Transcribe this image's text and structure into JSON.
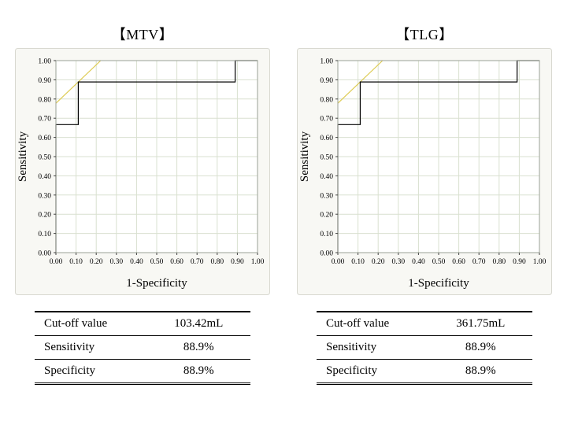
{
  "figures": [
    {
      "title": "【MTV】",
      "table": {
        "rows": [
          {
            "label": "Cut-off value",
            "value": "103.42mL"
          },
          {
            "label": "Sensitivity",
            "value": "88.9%"
          },
          {
            "label": "Specificity",
            "value": "88.9%"
          }
        ]
      }
    },
    {
      "title": "【TLG】",
      "table": {
        "rows": [
          {
            "label": "Cut-off value",
            "value": "361.75mL"
          },
          {
            "label": "Sensitivity",
            "value": "88.9%"
          },
          {
            "label": "Specificity",
            "value": "88.9%"
          }
        ]
      }
    }
  ],
  "chart_data": [
    {
      "type": "line",
      "title": "【MTV】",
      "xlabel": "1-Specificity",
      "ylabel": "Sensitivity",
      "xlim": [
        0,
        1
      ],
      "ylim": [
        0,
        1
      ],
      "grid": true,
      "legend": "none",
      "tick_labels": [
        "0.00",
        "0.10",
        "0.20",
        "0.30",
        "0.40",
        "0.50",
        "0.60",
        "0.70",
        "0.80",
        "0.90",
        "1.00"
      ],
      "colors": {
        "panel": "#f8f8f4",
        "panel_border": "#d8d8d0",
        "grid": "#d9e0d0",
        "plot_border": "#9aa096",
        "tick": "#444444"
      },
      "series": [
        {
          "name": "youden-reference-line",
          "color": "#ddcb52",
          "points": [
            [
              0,
              0.778
            ],
            [
              0.222,
              1.0
            ]
          ]
        },
        {
          "name": "ROC curve",
          "color": "#000000",
          "points": [
            [
              0,
              0
            ],
            [
              0,
              0.667
            ],
            [
              0.111,
              0.667
            ],
            [
              0.111,
              0.889
            ],
            [
              0.889,
              0.889
            ],
            [
              0.889,
              1.0
            ],
            [
              1,
              1
            ]
          ]
        }
      ]
    },
    {
      "type": "line",
      "title": "【TLG】",
      "xlabel": "1-Specificity",
      "ylabel": "Sensitivity",
      "xlim": [
        0,
        1
      ],
      "ylim": [
        0,
        1
      ],
      "grid": true,
      "legend": "none",
      "tick_labels": [
        "0.00",
        "0.10",
        "0.20",
        "0.30",
        "0.40",
        "0.50",
        "0.60",
        "0.70",
        "0.80",
        "0.90",
        "1.00"
      ],
      "colors": {
        "panel": "#f8f8f4",
        "panel_border": "#d8d8d0",
        "grid": "#d9e0d0",
        "plot_border": "#9aa096",
        "tick": "#444444"
      },
      "series": [
        {
          "name": "youden-reference-line",
          "color": "#ddcb52",
          "points": [
            [
              0,
              0.778
            ],
            [
              0.222,
              1.0
            ]
          ]
        },
        {
          "name": "ROC curve",
          "color": "#000000",
          "points": [
            [
              0,
              0
            ],
            [
              0,
              0.667
            ],
            [
              0.111,
              0.667
            ],
            [
              0.111,
              0.889
            ],
            [
              0.889,
              0.889
            ],
            [
              0.889,
              1.0
            ],
            [
              1,
              1
            ]
          ]
        }
      ]
    }
  ]
}
